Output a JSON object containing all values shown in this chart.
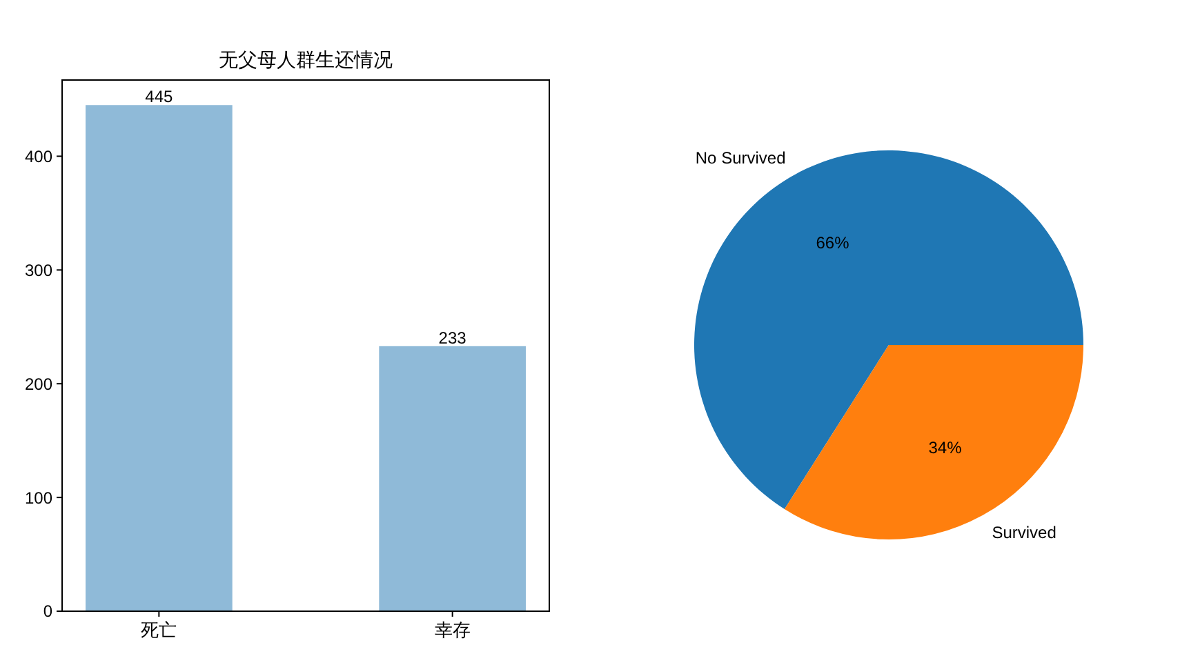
{
  "chart_data": [
    {
      "type": "bar",
      "title": "无父母人群生还情况",
      "categories": [
        "死亡",
        "幸存"
      ],
      "values": [
        445,
        233
      ],
      "color": "#8fbad8",
      "ylim": [
        0,
        467
      ],
      "yticks": [
        0,
        100,
        200,
        300,
        400
      ],
      "data_labels": true
    },
    {
      "type": "pie",
      "categories": [
        "No Survived",
        "Survived"
      ],
      "values": [
        66,
        34
      ],
      "colors": [
        "#1f77b4",
        "#ff7f0e"
      ],
      "value_labels": [
        "66%",
        "34%"
      ]
    }
  ]
}
